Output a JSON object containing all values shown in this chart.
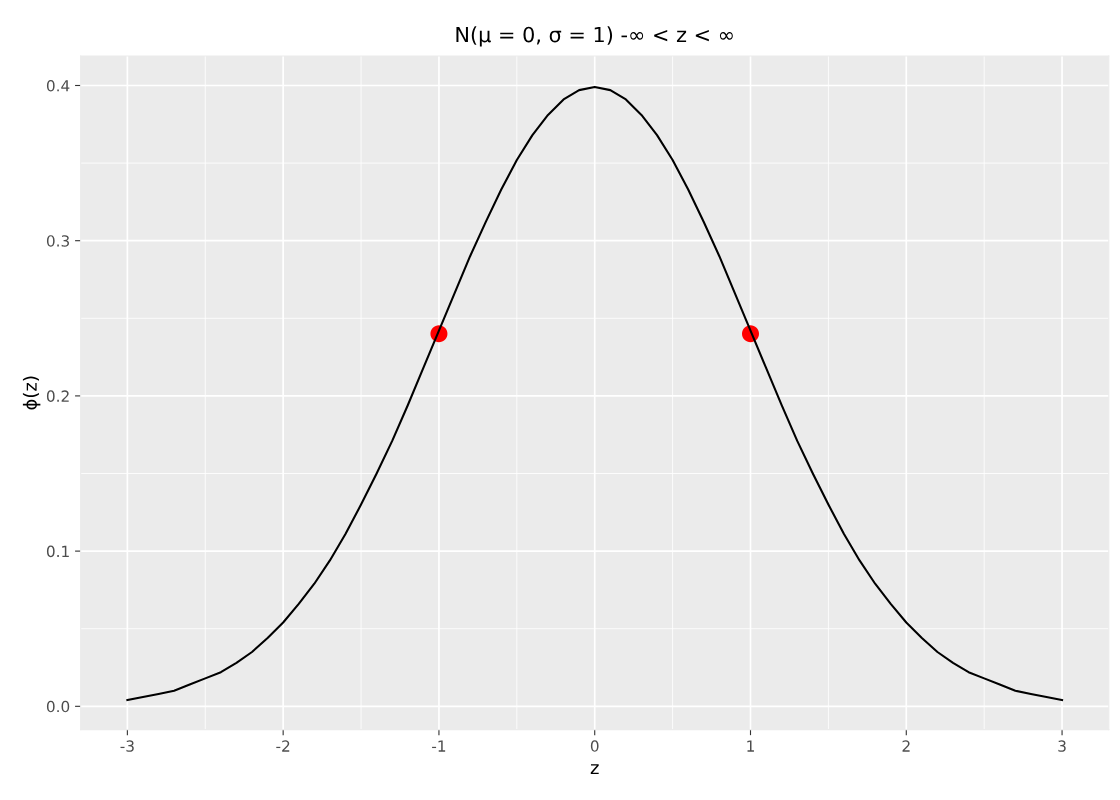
{
  "chart_data": {
    "type": "line",
    "title": "N(μ = 0, σ = 1) -∞ < z < ∞",
    "xlabel": "z",
    "ylabel": "ϕ(z)",
    "xlim": [
      -3.3,
      3.3
    ],
    "ylim": [
      -0.015,
      0.419
    ],
    "xticks": [
      {
        "value": -3,
        "label": "-3"
      },
      {
        "value": -2,
        "label": "-2"
      },
      {
        "value": -1,
        "label": "-1"
      },
      0,
      1,
      2,
      3
    ],
    "yticks": [
      {
        "value": 0,
        "label": "0.0"
      },
      0.1,
      0.2,
      0.3,
      0.4
    ],
    "grid": true,
    "series": [
      {
        "color": "#000000",
        "x": [
          -3.0,
          -2.9,
          -2.8,
          -2.7,
          -2.6,
          -2.5,
          -2.4,
          -2.3,
          -2.2,
          -2.1,
          -2.0,
          -1.9,
          -1.8,
          -1.7,
          -1.6,
          -1.5,
          -1.4,
          -1.3,
          -1.2,
          -1.1,
          -1.0,
          -0.9,
          -0.8,
          -0.7,
          -0.6,
          -0.5,
          -0.4,
          -0.3,
          -0.2,
          -0.1,
          0.0,
          0.1,
          0.2,
          0.3,
          0.4,
          0.5,
          0.6,
          0.7,
          0.8,
          0.9,
          1.0,
          1.1,
          1.2,
          1.3,
          1.4,
          1.5,
          1.6,
          1.7,
          1.8,
          1.9,
          2.0,
          2.1,
          2.2,
          2.3,
          2.4,
          2.5,
          2.6,
          2.7,
          2.8,
          2.9,
          3.0
        ],
        "values": [
          0.004,
          0.006,
          0.008,
          0.01,
          0.014,
          0.018,
          0.022,
          0.028,
          0.035,
          0.044,
          0.054,
          0.066,
          0.079,
          0.094,
          0.111,
          0.13,
          0.15,
          0.171,
          0.194,
          0.218,
          0.242,
          0.266,
          0.29,
          0.312,
          0.333,
          0.352,
          0.368,
          0.381,
          0.391,
          0.397,
          0.399,
          0.397,
          0.391,
          0.381,
          0.368,
          0.352,
          0.333,
          0.312,
          0.29,
          0.266,
          0.242,
          0.218,
          0.194,
          0.171,
          0.15,
          0.13,
          0.111,
          0.094,
          0.079,
          0.066,
          0.054,
          0.044,
          0.035,
          0.028,
          0.022,
          0.018,
          0.014,
          0.01,
          0.008,
          0.006,
          0.004
        ]
      },
      {
        "type": "scatter",
        "color": "#ff0000",
        "marker": "circle",
        "x": [
          -1,
          1
        ],
        "values": [
          0.24,
          0.24
        ]
      }
    ]
  }
}
